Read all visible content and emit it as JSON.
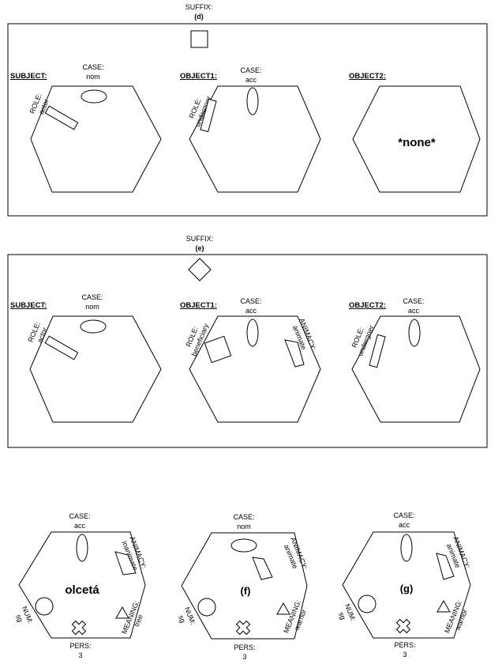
{
  "panel_d": {
    "suffix_label": "SUFFIX:",
    "suffix_value": "(d)",
    "subject": {
      "header": "SUBJECT:",
      "case_label": "CASE:",
      "case_value": "nom",
      "role_label": "ROLE:",
      "role_value": "actor"
    },
    "object1": {
      "header": "OBJECT1:",
      "case_label": "CASE:",
      "case_value": "acc",
      "role_label": "ROLE:",
      "role_value": "undergoer"
    },
    "object2": {
      "header": "OBJECT2:",
      "content": "*none*"
    }
  },
  "panel_e": {
    "suffix_label": "SUFFIX:",
    "suffix_value": "(e)",
    "subject": {
      "header": "SUBJECT:",
      "case_label": "CASE:",
      "case_value": "nom",
      "role_label": "ROLE:",
      "role_value": "actor"
    },
    "object1": {
      "header": "OBJECT1:",
      "case_label": "CASE:",
      "case_value": "acc",
      "role_label": "ROLE:",
      "role_value": "beneficiary",
      "animacy_label": "ANIMACY:",
      "animacy_value": "animate"
    },
    "object2": {
      "header": "OBJECT2:",
      "case_label": "CASE:",
      "case_value": "acc",
      "role_label": "ROLE:",
      "role_value": "undergoer"
    }
  },
  "nouns": [
    {
      "case_label": "CASE:",
      "case_value": "acc",
      "animacy_label": "ANIMACY:",
      "animacy_value": "inanimate",
      "center": "olcetá",
      "num_label": "NUM:",
      "num_value": "sg",
      "meaning_label": "MEANING:",
      "meaning_value": "tree",
      "pers_label": "PERS:",
      "pers_value": "3"
    },
    {
      "case_label": "CASE:",
      "case_value": "nom",
      "animacy_label": "ANIMACY:",
      "animacy_value": "animate",
      "center": "(f)",
      "num_label": "NUM:",
      "num_value": "sg",
      "meaning_label": "MEANING:",
      "meaning_value": "warrior",
      "pers_label": "PERS:",
      "pers_value": "3"
    },
    {
      "case_label": "CASE:",
      "case_value": "acc",
      "animacy_label": "ANIMACY:",
      "animacy_value": "animate",
      "center": "(g)",
      "num_label": "NUM:",
      "num_value": "sg",
      "meaning_label": "MEANING:",
      "meaning_value": "warrior",
      "pers_label": "PERS:",
      "pers_value": "3"
    }
  ]
}
